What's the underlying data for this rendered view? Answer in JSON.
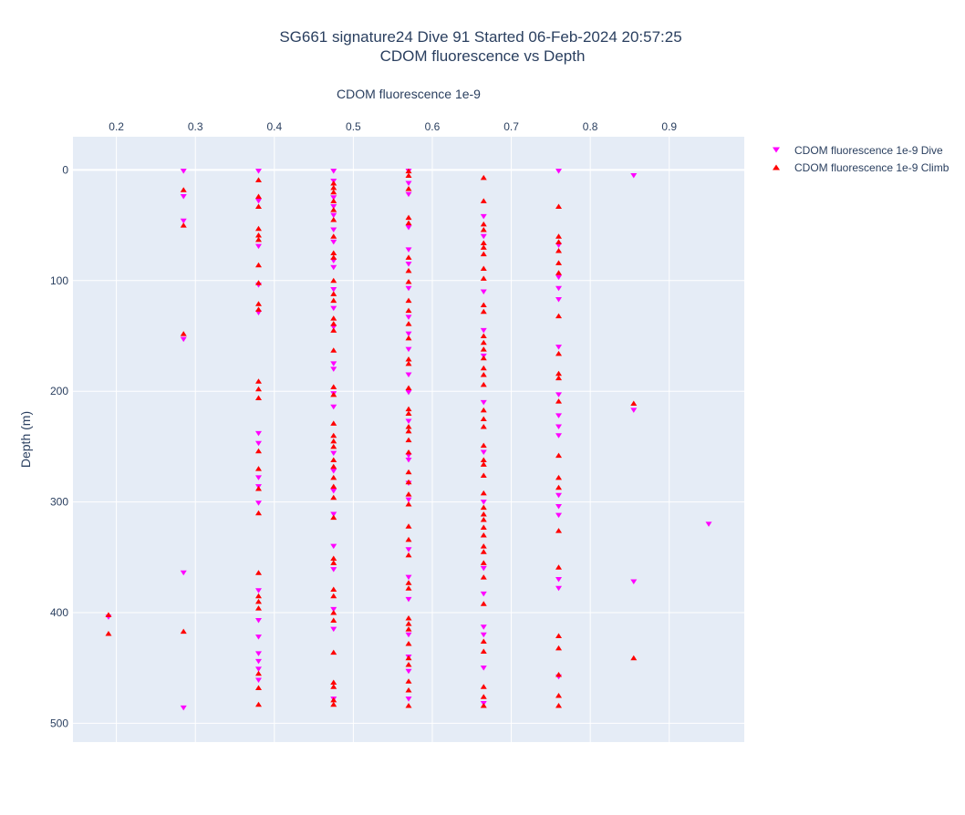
{
  "chart_data": {
    "type": "scatter",
    "title_lines": [
      "SG661 signature24 Dive 91 Started 06-Feb-2024 20:57:25",
      "CDOM fluorescence vs Depth"
    ],
    "xlabel": "CDOM fluorescence 1e-9",
    "ylabel": "Depth (m)",
    "xlim": [
      0.145,
      0.995
    ],
    "ylim": [
      517,
      -30
    ],
    "x_ticks": [
      0.2,
      0.3,
      0.4,
      0.5,
      0.6,
      0.7,
      0.8,
      0.9
    ],
    "x_tick_labels": [
      "0.2",
      "0.3",
      "0.4",
      "0.5",
      "0.6",
      "0.7",
      "0.8",
      "0.9"
    ],
    "y_ticks": [
      0,
      100,
      200,
      300,
      400,
      500
    ],
    "y_tick_labels": [
      "0",
      "100",
      "200",
      "300",
      "400",
      "500"
    ],
    "x_axis_position": "top",
    "y_axis_reversed": true,
    "grid": true,
    "legend_position": "top-right",
    "series": [
      {
        "name": "CDOM fluorescence 1e-9 Dive",
        "color": "#ff00ff",
        "marker": "triangle-down",
        "points": [
          [
            0.285,
            1
          ],
          [
            0.285,
            24
          ],
          [
            0.285,
            46
          ],
          [
            0.285,
            153
          ],
          [
            0.285,
            364
          ],
          [
            0.285,
            486
          ],
          [
            0.19,
            404
          ],
          [
            0.38,
            1
          ],
          [
            0.38,
            28
          ],
          [
            0.38,
            69
          ],
          [
            0.38,
            104
          ],
          [
            0.38,
            129
          ],
          [
            0.38,
            238
          ],
          [
            0.38,
            247
          ],
          [
            0.38,
            278
          ],
          [
            0.38,
            286
          ],
          [
            0.38,
            301
          ],
          [
            0.38,
            380
          ],
          [
            0.38,
            407
          ],
          [
            0.38,
            422
          ],
          [
            0.38,
            437
          ],
          [
            0.38,
            444
          ],
          [
            0.38,
            451
          ],
          [
            0.38,
            461
          ],
          [
            0.475,
            1
          ],
          [
            0.475,
            10
          ],
          [
            0.475,
            25
          ],
          [
            0.475,
            33
          ],
          [
            0.475,
            41
          ],
          [
            0.475,
            54
          ],
          [
            0.475,
            65
          ],
          [
            0.475,
            82
          ],
          [
            0.475,
            88
          ],
          [
            0.475,
            108
          ],
          [
            0.475,
            125
          ],
          [
            0.475,
            142
          ],
          [
            0.475,
            175
          ],
          [
            0.475,
            180
          ],
          [
            0.475,
            202
          ],
          [
            0.475,
            214
          ],
          [
            0.475,
            256
          ],
          [
            0.475,
            272
          ],
          [
            0.475,
            290
          ],
          [
            0.475,
            311
          ],
          [
            0.475,
            340
          ],
          [
            0.475,
            361
          ],
          [
            0.475,
            397
          ],
          [
            0.475,
            415
          ],
          [
            0.475,
            478
          ],
          [
            0.57,
            1
          ],
          [
            0.57,
            12
          ],
          [
            0.57,
            22
          ],
          [
            0.57,
            52
          ],
          [
            0.57,
            72
          ],
          [
            0.57,
            85
          ],
          [
            0.57,
            107
          ],
          [
            0.57,
            133
          ],
          [
            0.57,
            148
          ],
          [
            0.57,
            162
          ],
          [
            0.57,
            185
          ],
          [
            0.57,
            201
          ],
          [
            0.57,
            227
          ],
          [
            0.57,
            258
          ],
          [
            0.57,
            262
          ],
          [
            0.57,
            283
          ],
          [
            0.57,
            298
          ],
          [
            0.57,
            343
          ],
          [
            0.57,
            368
          ],
          [
            0.57,
            388
          ],
          [
            0.57,
            420
          ],
          [
            0.57,
            440
          ],
          [
            0.57,
            453
          ],
          [
            0.57,
            478
          ],
          [
            0.665,
            42
          ],
          [
            0.665,
            60
          ],
          [
            0.665,
            110
          ],
          [
            0.665,
            145
          ],
          [
            0.665,
            168
          ],
          [
            0.665,
            210
          ],
          [
            0.665,
            255
          ],
          [
            0.665,
            300
          ],
          [
            0.665,
            360
          ],
          [
            0.665,
            383
          ],
          [
            0.665,
            413
          ],
          [
            0.665,
            420
          ],
          [
            0.665,
            450
          ],
          [
            0.665,
            482
          ],
          [
            0.76,
            1
          ],
          [
            0.76,
            68
          ],
          [
            0.76,
            97
          ],
          [
            0.76,
            107
          ],
          [
            0.76,
            117
          ],
          [
            0.76,
            160
          ],
          [
            0.76,
            203
          ],
          [
            0.76,
            222
          ],
          [
            0.76,
            232
          ],
          [
            0.76,
            240
          ],
          [
            0.76,
            294
          ],
          [
            0.76,
            304
          ],
          [
            0.76,
            312
          ],
          [
            0.76,
            370
          ],
          [
            0.76,
            378
          ],
          [
            0.76,
            458
          ],
          [
            0.855,
            5
          ],
          [
            0.855,
            217
          ],
          [
            0.855,
            372
          ],
          [
            0.95,
            320
          ]
        ]
      },
      {
        "name": "CDOM fluorescence 1e-9 Climb",
        "color": "#ff0000",
        "marker": "triangle-up",
        "points": [
          [
            0.285,
            18
          ],
          [
            0.285,
            50
          ],
          [
            0.285,
            148
          ],
          [
            0.285,
            417
          ],
          [
            0.19,
            402
          ],
          [
            0.19,
            419
          ],
          [
            0.38,
            9
          ],
          [
            0.38,
            24
          ],
          [
            0.38,
            33
          ],
          [
            0.38,
            53
          ],
          [
            0.38,
            59
          ],
          [
            0.38,
            63
          ],
          [
            0.38,
            86
          ],
          [
            0.38,
            102
          ],
          [
            0.38,
            121
          ],
          [
            0.38,
            126
          ],
          [
            0.38,
            191
          ],
          [
            0.38,
            198
          ],
          [
            0.38,
            206
          ],
          [
            0.38,
            254
          ],
          [
            0.38,
            270
          ],
          [
            0.38,
            288
          ],
          [
            0.38,
            310
          ],
          [
            0.38,
            364
          ],
          [
            0.38,
            385
          ],
          [
            0.38,
            390
          ],
          [
            0.38,
            396
          ],
          [
            0.38,
            455
          ],
          [
            0.38,
            468
          ],
          [
            0.38,
            483
          ],
          [
            0.475,
            12
          ],
          [
            0.475,
            16
          ],
          [
            0.475,
            20
          ],
          [
            0.475,
            28
          ],
          [
            0.475,
            36
          ],
          [
            0.475,
            45
          ],
          [
            0.475,
            60
          ],
          [
            0.475,
            75
          ],
          [
            0.475,
            79
          ],
          [
            0.475,
            100
          ],
          [
            0.475,
            112
          ],
          [
            0.475,
            118
          ],
          [
            0.475,
            134
          ],
          [
            0.475,
            139
          ],
          [
            0.475,
            145
          ],
          [
            0.475,
            163
          ],
          [
            0.475,
            196
          ],
          [
            0.475,
            203
          ],
          [
            0.475,
            229
          ],
          [
            0.475,
            240
          ],
          [
            0.475,
            245
          ],
          [
            0.475,
            250
          ],
          [
            0.475,
            262
          ],
          [
            0.475,
            268
          ],
          [
            0.475,
            278
          ],
          [
            0.475,
            286
          ],
          [
            0.475,
            296
          ],
          [
            0.475,
            314
          ],
          [
            0.475,
            351
          ],
          [
            0.475,
            355
          ],
          [
            0.475,
            379
          ],
          [
            0.475,
            385
          ],
          [
            0.475,
            400
          ],
          [
            0.475,
            407
          ],
          [
            0.475,
            436
          ],
          [
            0.475,
            463
          ],
          [
            0.475,
            467
          ],
          [
            0.475,
            479
          ],
          [
            0.475,
            483
          ],
          [
            0.57,
            1
          ],
          [
            0.57,
            5
          ],
          [
            0.57,
            17
          ],
          [
            0.57,
            43
          ],
          [
            0.57,
            48
          ],
          [
            0.57,
            79
          ],
          [
            0.57,
            91
          ],
          [
            0.57,
            101
          ],
          [
            0.57,
            118
          ],
          [
            0.57,
            127
          ],
          [
            0.57,
            139
          ],
          [
            0.57,
            152
          ],
          [
            0.57,
            171
          ],
          [
            0.57,
            175
          ],
          [
            0.57,
            197
          ],
          [
            0.57,
            216
          ],
          [
            0.57,
            220
          ],
          [
            0.57,
            232
          ],
          [
            0.57,
            236
          ],
          [
            0.57,
            244
          ],
          [
            0.57,
            255
          ],
          [
            0.57,
            273
          ],
          [
            0.57,
            282
          ],
          [
            0.57,
            293
          ],
          [
            0.57,
            302
          ],
          [
            0.57,
            322
          ],
          [
            0.57,
            334
          ],
          [
            0.57,
            348
          ],
          [
            0.57,
            373
          ],
          [
            0.57,
            378
          ],
          [
            0.57,
            405
          ],
          [
            0.57,
            410
          ],
          [
            0.57,
            415
          ],
          [
            0.57,
            428
          ],
          [
            0.57,
            441
          ],
          [
            0.57,
            447
          ],
          [
            0.57,
            462
          ],
          [
            0.57,
            470
          ],
          [
            0.57,
            484
          ],
          [
            0.665,
            7
          ],
          [
            0.665,
            28
          ],
          [
            0.665,
            49
          ],
          [
            0.665,
            54
          ],
          [
            0.665,
            66
          ],
          [
            0.665,
            70
          ],
          [
            0.665,
            76
          ],
          [
            0.665,
            89
          ],
          [
            0.665,
            98
          ],
          [
            0.665,
            122
          ],
          [
            0.665,
            128
          ],
          [
            0.665,
            150
          ],
          [
            0.665,
            156
          ],
          [
            0.665,
            162
          ],
          [
            0.665,
            170
          ],
          [
            0.665,
            179
          ],
          [
            0.665,
            185
          ],
          [
            0.665,
            194
          ],
          [
            0.665,
            217
          ],
          [
            0.665,
            225
          ],
          [
            0.665,
            232
          ],
          [
            0.665,
            249
          ],
          [
            0.665,
            262
          ],
          [
            0.665,
            266
          ],
          [
            0.665,
            276
          ],
          [
            0.665,
            292
          ],
          [
            0.665,
            305
          ],
          [
            0.665,
            311
          ],
          [
            0.665,
            316
          ],
          [
            0.665,
            323
          ],
          [
            0.665,
            330
          ],
          [
            0.665,
            340
          ],
          [
            0.665,
            345
          ],
          [
            0.665,
            355
          ],
          [
            0.665,
            368
          ],
          [
            0.665,
            392
          ],
          [
            0.665,
            426
          ],
          [
            0.665,
            435
          ],
          [
            0.665,
            467
          ],
          [
            0.665,
            476
          ],
          [
            0.665,
            484
          ],
          [
            0.76,
            33
          ],
          [
            0.76,
            60
          ],
          [
            0.76,
            65
          ],
          [
            0.76,
            73
          ],
          [
            0.76,
            84
          ],
          [
            0.76,
            93
          ],
          [
            0.76,
            132
          ],
          [
            0.76,
            166
          ],
          [
            0.76,
            184
          ],
          [
            0.76,
            188
          ],
          [
            0.76,
            209
          ],
          [
            0.76,
            258
          ],
          [
            0.76,
            278
          ],
          [
            0.76,
            287
          ],
          [
            0.76,
            326
          ],
          [
            0.76,
            359
          ],
          [
            0.76,
            421
          ],
          [
            0.76,
            432
          ],
          [
            0.76,
            456
          ],
          [
            0.76,
            475
          ],
          [
            0.76,
            484
          ],
          [
            0.855,
            211
          ],
          [
            0.855,
            441
          ]
        ]
      }
    ]
  }
}
